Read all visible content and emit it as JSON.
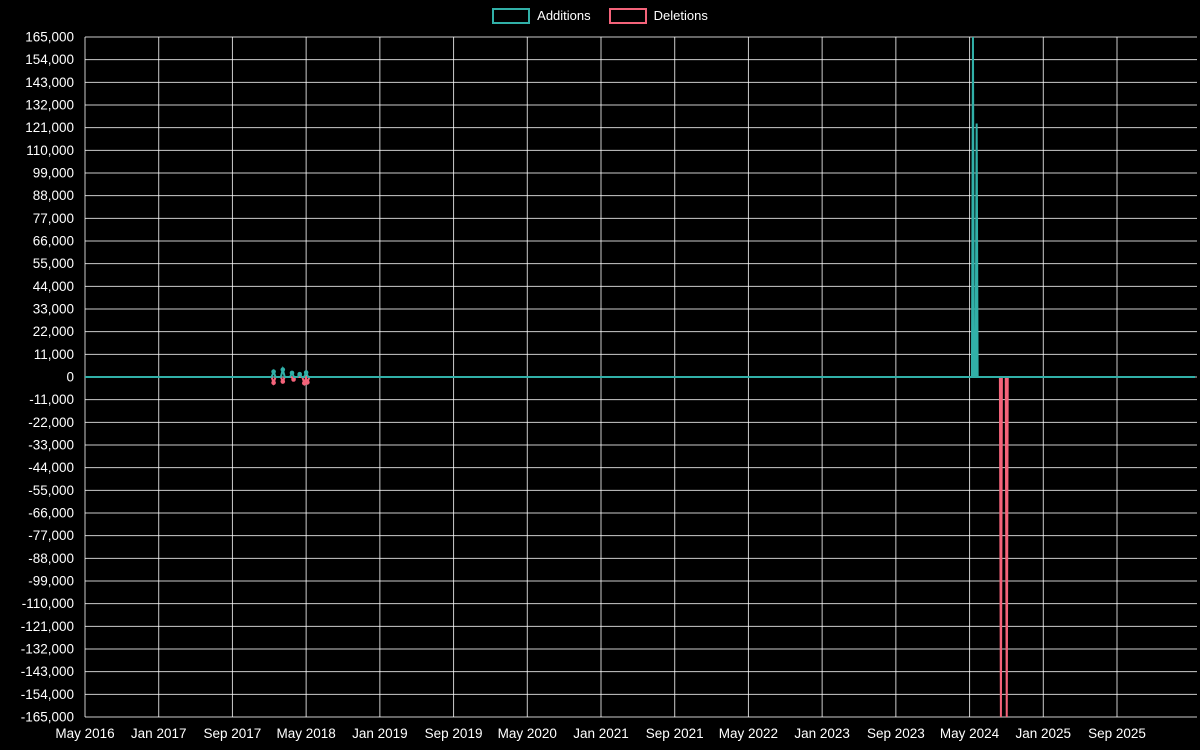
{
  "legend": {
    "items": [
      {
        "label": "Additions",
        "color": "#31b0a8"
      },
      {
        "label": "Deletions",
        "color": "#f4637a"
      }
    ]
  },
  "chart_data": {
    "type": "line",
    "title": "",
    "background": "#000000",
    "grid_color": "rgba(255,255,255,0.8)",
    "axis_text_color": "#ffffff",
    "legend_position": "top-center",
    "grid": true,
    "ylim": [
      -165000,
      165000
    ],
    "y_tick_step": 11000,
    "y_ticks": [
      165000,
      154000,
      143000,
      132000,
      121000,
      110000,
      99000,
      88000,
      77000,
      66000,
      55000,
      44000,
      33000,
      22000,
      11000,
      0,
      -11000,
      -22000,
      -33000,
      -44000,
      -55000,
      -66000,
      -77000,
      -88000,
      -99000,
      -110000,
      -121000,
      -132000,
      -143000,
      -154000,
      -165000
    ],
    "x_ticks": [
      {
        "label": "May 2016",
        "date": "2016-05"
      },
      {
        "label": "Jan 2017",
        "date": "2017-01"
      },
      {
        "label": "Sep 2017",
        "date": "2017-09"
      },
      {
        "label": "May 2018",
        "date": "2018-05"
      },
      {
        "label": "Jan 2019",
        "date": "2019-01"
      },
      {
        "label": "Sep 2019",
        "date": "2019-09"
      },
      {
        "label": "May 2020",
        "date": "2020-05"
      },
      {
        "label": "Jan 2021",
        "date": "2021-01"
      },
      {
        "label": "Sep 2021",
        "date": "2021-09"
      },
      {
        "label": "May 2022",
        "date": "2022-05"
      },
      {
        "label": "Jan 2023",
        "date": "2023-01"
      },
      {
        "label": "Sep 2023",
        "date": "2023-09"
      },
      {
        "label": "May 2024",
        "date": "2024-05"
      },
      {
        "label": "Jan 2025",
        "date": "2025-01"
      },
      {
        "label": "Sep 2025",
        "date": "2025-09"
      }
    ],
    "series": [
      {
        "name": "Additions",
        "color": "#31b0a8",
        "baseline": 0,
        "spikes": [
          {
            "date": "2018-01-15",
            "value": 2600,
            "marker": true
          },
          {
            "date": "2018-02-15",
            "value": 3600,
            "marker": true
          },
          {
            "date": "2018-03-15",
            "value": 2000,
            "marker": true
          },
          {
            "date": "2018-04-10",
            "value": 1400,
            "marker": true
          },
          {
            "date": "2018-05-01",
            "value": 2200,
            "marker": true
          },
          {
            "date": "2024-05-12",
            "value": 168000,
            "marker": false
          },
          {
            "date": "2024-05-24",
            "value": 123000,
            "marker": false
          }
        ]
      },
      {
        "name": "Deletions",
        "color": "#f4637a",
        "baseline": 0,
        "spikes": [
          {
            "date": "2018-01-15",
            "value": -2800,
            "marker": true
          },
          {
            "date": "2018-02-15",
            "value": -2200,
            "marker": true
          },
          {
            "date": "2018-03-20",
            "value": -1200,
            "marker": true
          },
          {
            "date": "2018-04-25",
            "value": -3000,
            "marker": true
          },
          {
            "date": "2018-05-05",
            "value": -2600,
            "marker": true
          },
          {
            "date": "2024-08-13",
            "value": -168000,
            "marker": false
          },
          {
            "date": "2024-09-02",
            "value": -168000,
            "marker": false
          }
        ]
      }
    ]
  }
}
